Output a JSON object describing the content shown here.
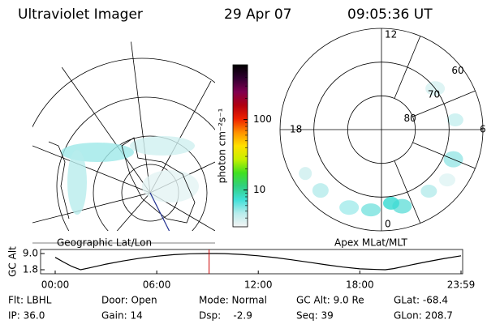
{
  "header": {
    "title": "Ultraviolet Imager",
    "date": "29 Apr 07",
    "time": "09:05:36 UT"
  },
  "panels": {
    "left_label": "Geographic Lat/Lon",
    "right_label": "Apex MLat/MLT"
  },
  "polar": {
    "mlat_lim": [
      60,
      90
    ],
    "mlat_ticks": [
      60,
      70,
      80
    ],
    "mlt_ticks": [
      0,
      6,
      12,
      18
    ]
  },
  "colorbar": {
    "label": "photon cm⁻²s⁻¹",
    "scale": "log",
    "lim": [
      3,
      600
    ],
    "ticks": [
      10,
      100
    ],
    "colors": [
      "#f4f4f4",
      "#b8ecec",
      "#40e0d8",
      "#30d080",
      "#40e020",
      "#c8f000",
      "#ffe000",
      "#ff9000",
      "#ee2000",
      "#b00010",
      "#800050",
      "#300030",
      "#000000"
    ]
  },
  "chart_data": {
    "type": "line",
    "y_label": "GC Alt",
    "x": [
      0,
      0.5,
      1,
      1.5,
      2,
      3,
      4,
      5,
      6,
      7,
      8,
      9,
      9.5,
      10,
      11,
      12,
      13,
      14,
      15,
      16,
      17,
      18,
      19,
      19.5,
      20,
      21,
      22,
      23,
      23.98
    ],
    "values": [
      7.3,
      5.2,
      3.2,
      1.8,
      2.6,
      4.3,
      5.7,
      6.9,
      7.8,
      8.5,
      8.9,
      9.0,
      9.0,
      8.95,
      8.6,
      8.0,
      7.2,
      6.2,
      5.1,
      4.0,
      3.0,
      2.2,
      1.9,
      1.8,
      2.3,
      3.9,
      5.4,
      6.8,
      8.0
    ],
    "color": "#000000",
    "marker_x": 9.0933,
    "marker_color": "#cc0000",
    "xlim": [
      0,
      23.98
    ],
    "xticks": [
      {
        "value": 0,
        "label": "00:00"
      },
      {
        "value": 6,
        "label": "06:00"
      },
      {
        "value": 12,
        "label": "12:00"
      },
      {
        "value": 18,
        "label": "18:00"
      },
      {
        "value": 23.98,
        "label": "23:59"
      }
    ],
    "ylim": [
      0,
      10.8
    ],
    "yticks": [
      {
        "value": 9,
        "label": "9.0"
      },
      {
        "value": 1.8,
        "label": "1.8"
      }
    ]
  },
  "status": {
    "rows": [
      [
        "Flt: LBHL",
        "Door: Open",
        "Mode: Normal",
        "GC Alt: 9.0 Re",
        "GLat: -68.4"
      ],
      [
        "IP: 36.0",
        "Gain: 14",
        "Dsp:    -2.9",
        "Seq: 39",
        "GLon: 208.7"
      ]
    ]
  }
}
